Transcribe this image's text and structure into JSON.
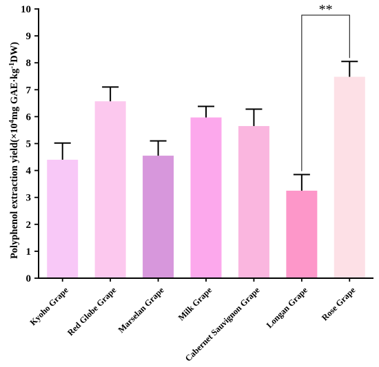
{
  "chart_data": {
    "type": "bar",
    "categories": [
      "Kyoho Grape",
      "Red Globe Grape",
      "Marselan Grape",
      "Milk Grape",
      "Cabernet Sauvignon Grape",
      "Longan Grape",
      "Rose Grape"
    ],
    "values": [
      4.4,
      6.57,
      4.55,
      5.97,
      5.65,
      3.25,
      7.48
    ],
    "errors": [
      0.62,
      0.53,
      0.55,
      0.41,
      0.63,
      0.6,
      0.57
    ],
    "colors": [
      "#f8c8f7",
      "#fcc8ee",
      "#d797dc",
      "#fca8ec",
      "#fab6df",
      "#fd97c9",
      "#fde0e6"
    ],
    "ylabel": {
      "prefix": "Polyphenol extraction yield(×10",
      "sup1": "4",
      "middle": "mg GAE·kg",
      "sup2": "-1",
      "suffix": "DW)"
    },
    "ylim": [
      0,
      10
    ],
    "yticks": [
      "0",
      "1",
      "2",
      "3",
      "4",
      "5",
      "6",
      "7",
      "8",
      "9",
      "10"
    ],
    "significance": {
      "from": 5,
      "to": 6,
      "label": "**"
    },
    "grid": false,
    "legend": "none"
  }
}
